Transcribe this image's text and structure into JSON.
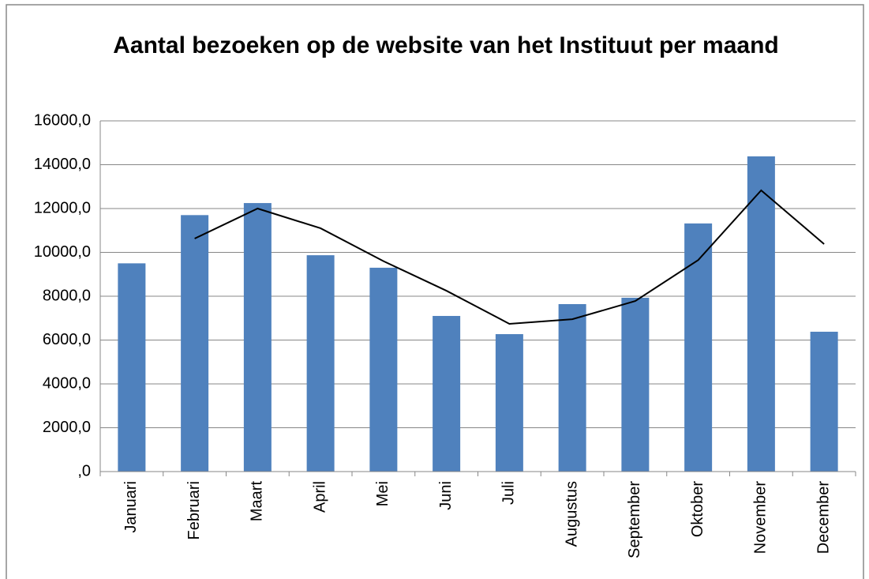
{
  "chart_data": {
    "type": "bar",
    "title": "Aantal bezoeken op de website van het Instituut per maand",
    "categories": [
      "Januari",
      "Februari",
      "Maart",
      "April",
      "Mei",
      "Juni",
      "Juli",
      "Augustus",
      "September",
      "Oktober",
      "November",
      "December"
    ],
    "series": [
      {
        "type": "bar",
        "color": "#4f81bd",
        "values": [
          9500,
          11700,
          12250,
          9870,
          9300,
          7100,
          6270,
          7640,
          7930,
          11320,
          14380,
          6380
        ]
      },
      {
        "type": "line",
        "color": "#000000",
        "values": [
          null,
          10630,
          12000,
          11100,
          9600,
          8250,
          6740,
          6950,
          7780,
          9650,
          12830,
          10380
        ]
      }
    ],
    "ylim": [
      0,
      16000
    ],
    "yticks": [
      {
        "value": 0,
        "label": ",0"
      },
      {
        "value": 2000,
        "label": "2000,0"
      },
      {
        "value": 4000,
        "label": "4000,0"
      },
      {
        "value": 6000,
        "label": "6000,0"
      },
      {
        "value": 8000,
        "label": "8000,0"
      },
      {
        "value": 10000,
        "label": "10000,0"
      },
      {
        "value": 12000,
        "label": "12000,0"
      },
      {
        "value": 14000,
        "label": "14000,0"
      },
      {
        "value": 16000,
        "label": "16000,0"
      }
    ],
    "grid": true
  }
}
